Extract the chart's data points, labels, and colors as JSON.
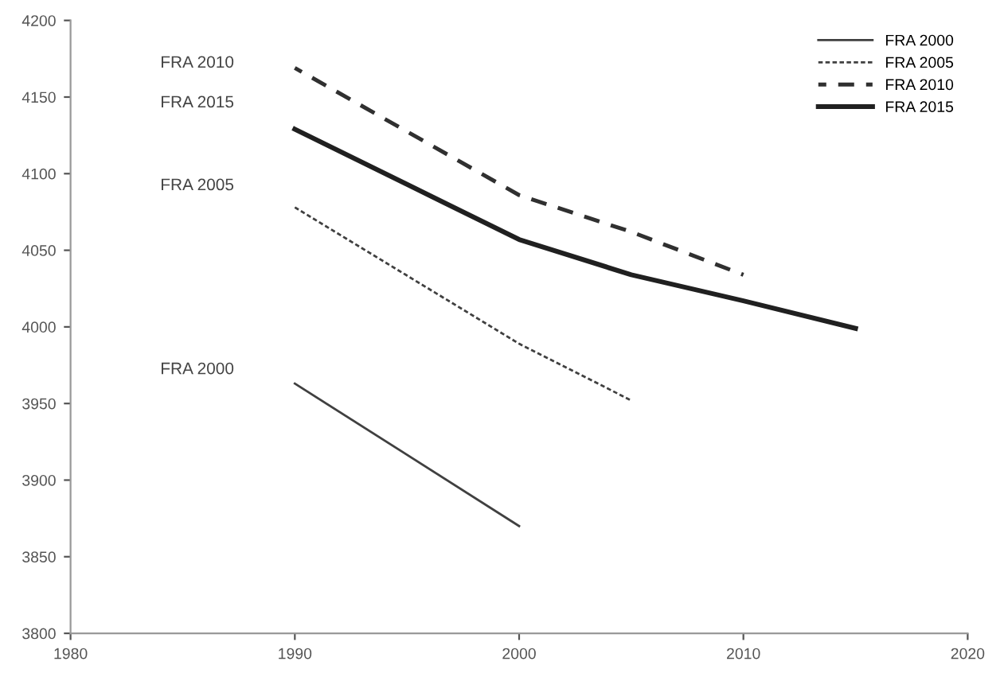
{
  "chart_data": {
    "type": "line",
    "series": [
      {
        "name": "FRA 2000",
        "color": "#404040",
        "line_style": "solid",
        "x": [
          1990,
          2000
        ],
        "values": [
          3963,
          3870
        ]
      },
      {
        "name": "FRA 2005",
        "color": "#404040",
        "line_style": "dotted",
        "x": [
          1990,
          2000,
          2005
        ],
        "values": [
          4078,
          3989,
          3952
        ]
      },
      {
        "name": "FRA 2010",
        "color": "#303030",
        "line_style": "dashed",
        "x": [
          1990,
          2000,
          2005,
          2010
        ],
        "values": [
          4169,
          4086,
          4062,
          4034
        ]
      },
      {
        "name": "FRA 2015",
        "color": "#202020",
        "line_style": "solid",
        "x": [
          1990,
          2000,
          2005,
          2010,
          2015
        ],
        "values": [
          4129,
          4057,
          4034,
          4017,
          3999
        ]
      }
    ],
    "annotations": [
      "FRA 2010",
      "FRA 2015",
      "FRA 2005",
      "FRA 2000"
    ],
    "xlim": [
      1980,
      2020
    ],
    "xticks": [
      1980,
      1990,
      2000,
      2010,
      2020
    ],
    "ylim": [
      3800,
      4200
    ],
    "yticks": [
      3800,
      3850,
      3900,
      3950,
      4000,
      4050,
      4100,
      4150,
      4200
    ],
    "grid": false,
    "legend": "top right",
    "marker": "none"
  }
}
